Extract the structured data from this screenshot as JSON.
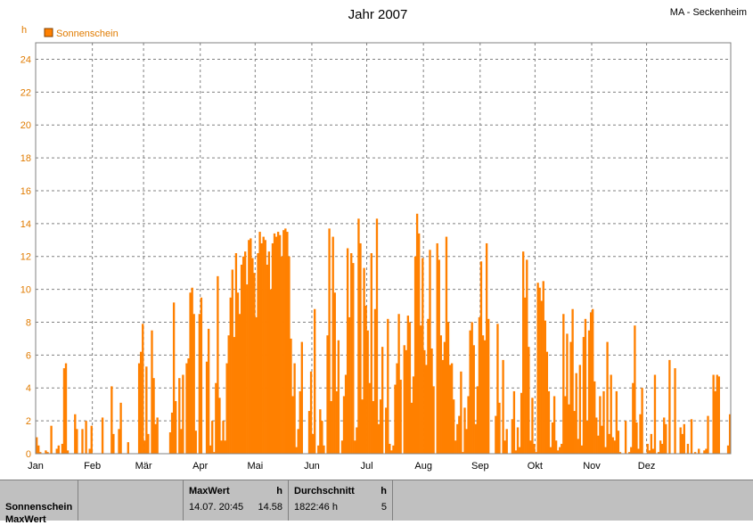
{
  "header": {
    "title": "Jahr 2007",
    "station": "MA - Seckenheim",
    "unit": "h"
  },
  "legend": {
    "label": "Sonnenschein",
    "color": "#ff8000"
  },
  "chart_data": {
    "type": "bar",
    "title": "Jahr 2007",
    "xlabel": "",
    "ylabel": "h",
    "ylim": [
      0,
      25
    ],
    "yticks": [
      0,
      2,
      4,
      6,
      8,
      10,
      12,
      14,
      16,
      18,
      20,
      22,
      24
    ],
    "month_labels": [
      "Jan",
      "Feb",
      "Mär",
      "Apr",
      "Mai",
      "Jun",
      "Jul",
      "Aug",
      "Sep",
      "Okt",
      "Nov",
      "Dez"
    ],
    "grid": true,
    "legend_position": "top-left",
    "series": [
      {
        "name": "Sonnenschein",
        "color": "#ff8000",
        "values": [
          1.0,
          0.5,
          0.1,
          0,
          0,
          0.2,
          0.1,
          0,
          1.7,
          0,
          0,
          0.3,
          0.5,
          0,
          0.6,
          5.2,
          5.5,
          0.2,
          0,
          0,
          0,
          2.4,
          1.5,
          0,
          0,
          1.5,
          0,
          2.0,
          0,
          0.3,
          1.7,
          0,
          0,
          0,
          0,
          0,
          2.2,
          0,
          0,
          0,
          0,
          4.1,
          1.2,
          0,
          0,
          1.5,
          3.1,
          0,
          0,
          0,
          0.7,
          0,
          0,
          0,
          0,
          0,
          5.5,
          6.2,
          7.9,
          0.8,
          5.3,
          1.2,
          0,
          7.5,
          4.6,
          1.8,
          2.2,
          0,
          0,
          0,
          0,
          0,
          0,
          1.3,
          2.5,
          9.2,
          3.2,
          0,
          4.6,
          1.5,
          4.8,
          0,
          5.5,
          5.8,
          9.8,
          10.1,
          8.5,
          1.4,
          0,
          8.5,
          9.5,
          0,
          0,
          5.6,
          7.6,
          0.5,
          2.0,
          0.1,
          4.3,
          10.8,
          3.4,
          0.8,
          2.0,
          0.8,
          5.5,
          7.2,
          9.5,
          11.2,
          7.1,
          12.2,
          9.8,
          8.5,
          11.5,
          12.0,
          12.3,
          10.3,
          13.0,
          13.1,
          11.9,
          11.0,
          8.3,
          12.2,
          13.5,
          12.8,
          13.2,
          13.0,
          11.5,
          12.3,
          10.0,
          12.8,
          13.4,
          13.2,
          13.5,
          13.3,
          12.0,
          13.6,
          13.7,
          13.5,
          12.0,
          7.0,
          3.5,
          5.5,
          0.4,
          1.5,
          3.8,
          6.8,
          0,
          0,
          0,
          2.6,
          5.0,
          1.2,
          8.8,
          0,
          0.5,
          2.7,
          2.0,
          0.5,
          0,
          7.2,
          13.7,
          3.2,
          13.2,
          9.8,
          3.8,
          6.9,
          0,
          0.8,
          3.5,
          4.8,
          12.5,
          8.3,
          12.2,
          11.6,
          0.8,
          1.6,
          14.3,
          12.8,
          3.3,
          11.3,
          9.0,
          7.5,
          4.3,
          12.2,
          3.2,
          8.8,
          14.3,
          1.8,
          3.3,
          6.5,
          0,
          2.8,
          8.2,
          0.6,
          0.2,
          0.5,
          4.2,
          5.5,
          8.5,
          4.5,
          0,
          6.6,
          6.3,
          8.4,
          8.0,
          3.1,
          4.7,
          12.0,
          14.6,
          13.4,
          7.8,
          11.9,
          6.3,
          5.4,
          8.2,
          12.4,
          6.4,
          4.1,
          0,
          12.8,
          11.8,
          7.2,
          5.7,
          6.8,
          13.2,
          8.0,
          5.4,
          5.5,
          3.3,
          0.8,
          1.8,
          2.3,
          5.0,
          0.1,
          2.8,
          1.5,
          3.5,
          7.5,
          8.0,
          6.6,
          1.8,
          4.1,
          8.3,
          11.7,
          7.2,
          6.9,
          12.8,
          8.2,
          0,
          0,
          0,
          2.3,
          7.9,
          3.1,
          0,
          5.7,
          0.8,
          1.5,
          0,
          0,
          2.1,
          3.8,
          0.2,
          1.6,
          0.4,
          3.7,
          12.3,
          9.5,
          11.8,
          6.5,
          0.8,
          3.4,
          0.6,
          0.1,
          10.4,
          10.1,
          9.3,
          10.5,
          8.1,
          6.2,
          3.8,
          0.4,
          1.9,
          3.5,
          0.8,
          0.2,
          0.4,
          0.6,
          8.5,
          3.5,
          7.3,
          3.0,
          6.8,
          8.8,
          2.6,
          4.9,
          0.9,
          5.4,
          0.5,
          7.1,
          8.2,
          2.0,
          7.5,
          8.6,
          8.8,
          4.4,
          2.2,
          1.1,
          3.5,
          1.7,
          3.8,
          0.4,
          6.8,
          1.2,
          4.8,
          1.0,
          0.8,
          3.8,
          1.4,
          0.1,
          0,
          0,
          2.0,
          0,
          0.1,
          0.4,
          4.3,
          7.8,
          1.9,
          0.3,
          2.4,
          4.0,
          0,
          0,
          0.6,
          0.2,
          1.2,
          0.3,
          4.8,
          0,
          0.1,
          0.8,
          0.6,
          2.2,
          1.8,
          0,
          5.7,
          0,
          0,
          5.2,
          0,
          0,
          1.6,
          1.2,
          1.8,
          0,
          0.6,
          0,
          2.1,
          0,
          0.1,
          0,
          0.3,
          0,
          0,
          0.2,
          0.3,
          2.3,
          0,
          0,
          4.8,
          3.8,
          4.8,
          4.7,
          0,
          0,
          0,
          0,
          0.5,
          2.4
        ]
      }
    ]
  },
  "stats": {
    "row_label": "Sonnenschein",
    "row_label_2": "MaxWert",
    "max_header": "MaxWert",
    "max_unit": "h",
    "max_time": "14.07.  20:45",
    "max_value": "14.58",
    "avg_header": "Durchschnitt",
    "avg_unit": "h",
    "avg_value": "1822:46 h",
    "avg_count": "5"
  }
}
